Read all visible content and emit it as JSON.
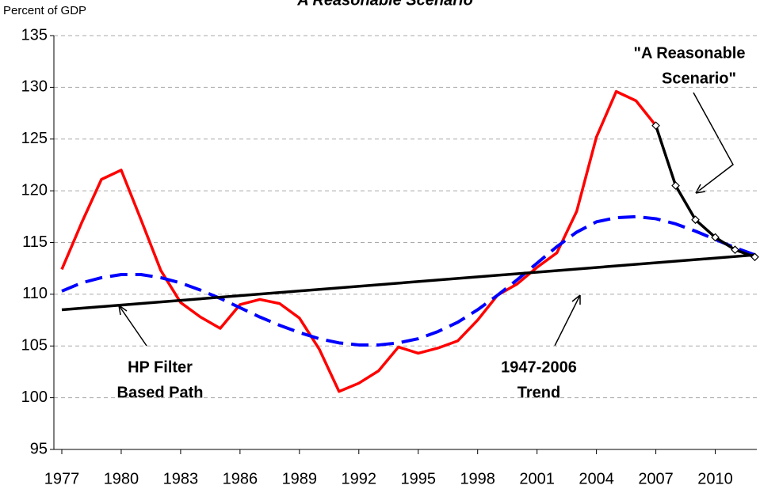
{
  "chart_data": {
    "type": "line",
    "title": "A Reasonable Scenario",
    "y_axis_label": "Percent of GDP",
    "xlim": [
      1976.6,
      2012.1
    ],
    "xticks": [
      1977,
      1980,
      1983,
      1986,
      1989,
      1992,
      1995,
      1998,
      2001,
      2004,
      2007,
      2010
    ],
    "ylim": [
      95,
      135
    ],
    "yticks": [
      95,
      100,
      105,
      110,
      115,
      120,
      125,
      130,
      135
    ],
    "grid": true,
    "series": [
      {
        "color": "#ff0000",
        "dash": false,
        "marker": false,
        "x": [
          1977,
          1978,
          1979,
          1980,
          1981,
          1982,
          1983,
          1984,
          1985,
          1986,
          1987,
          1988,
          1989,
          1990,
          1991,
          1992,
          1993,
          1994,
          1995,
          1996,
          1997,
          1998,
          1999,
          2000,
          2001,
          2002,
          2003,
          2004,
          2005,
          2006,
          2007
        ],
        "values": [
          112.4,
          116.9,
          121.1,
          122.0,
          117.2,
          112.3,
          109.2,
          107.8,
          106.7,
          109.0,
          109.5,
          109.1,
          107.7,
          104.7,
          100.6,
          101.4,
          102.6,
          104.9,
          104.3,
          104.8,
          105.5,
          107.5,
          109.9,
          111.0,
          112.6,
          114.0,
          118.0,
          125.2,
          129.6,
          128.7,
          126.3
        ]
      },
      {
        "color": "#0000ff",
        "dash": true,
        "marker": false,
        "x": [
          1977,
          1978,
          1979,
          1980,
          1981,
          1982,
          1983,
          1984,
          1985,
          1986,
          1987,
          1988,
          1989,
          1990,
          1991,
          1992,
          1993,
          1994,
          1995,
          1996,
          1997,
          1998,
          1999,
          2000,
          2001,
          2002,
          2003,
          2004,
          2005,
          2006,
          2007,
          2008,
          2009,
          2010,
          2011,
          2012
        ],
        "values": [
          110.3,
          111.1,
          111.6,
          111.9,
          111.9,
          111.6,
          111.1,
          110.4,
          109.6,
          108.7,
          107.8,
          107.0,
          106.3,
          105.7,
          105.3,
          105.1,
          105.1,
          105.3,
          105.7,
          106.4,
          107.3,
          108.5,
          109.9,
          111.4,
          113.0,
          114.6,
          116.0,
          117.0,
          117.4,
          117.5,
          117.3,
          116.8,
          116.1,
          115.3,
          114.5,
          113.8
        ]
      },
      {
        "color": "#000000",
        "dash": false,
        "marker": false,
        "x": [
          1977,
          2012
        ],
        "values": [
          108.5,
          113.8
        ]
      },
      {
        "color": "#000000",
        "dash": false,
        "marker": true,
        "x": [
          2007,
          2008,
          2009,
          2010,
          2011,
          2012
        ],
        "values": [
          126.3,
          120.5,
          117.2,
          115.5,
          114.3,
          113.6
        ]
      }
    ],
    "annotations": [
      {
        "lines": [
          "HP Filter",
          "Based Path"
        ]
      },
      {
        "lines": [
          "1947-2006",
          "Trend"
        ]
      },
      {
        "lines": [
          "\"A Reasonable",
          "Scenario\""
        ]
      }
    ]
  }
}
